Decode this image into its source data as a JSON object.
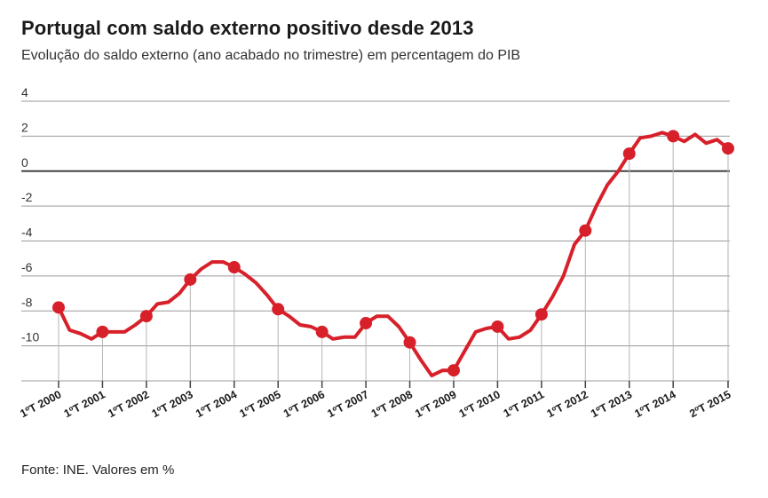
{
  "title": "Portugal com saldo externo positivo desde 2013",
  "subtitle": "Evolução do saldo externo (ano acabado no trimestre) em percentagem do PIB",
  "source": "Fonte: INE. Valores em %",
  "colors": {
    "line": "#d7202a",
    "grid": "#9a9a9a",
    "zero": "#444444",
    "vline": "#b5b5b5"
  },
  "chart_data": {
    "type": "line",
    "title": "Portugal com saldo externo positivo desde 2013",
    "subtitle": "Evolução do saldo externo (ano acabado no trimestre) em percentagem do PIB",
    "xlabel": "",
    "ylabel": "",
    "ylim": [
      -12,
      4
    ],
    "yticks": [
      4,
      2,
      0,
      -2,
      -4,
      -6,
      -8,
      -10
    ],
    "ytick_labels": [
      "4",
      "2",
      "0",
      "-2",
      "-4",
      "-6",
      "-8",
      "-10"
    ],
    "grid": true,
    "x_labels": [
      {
        "q": 0,
        "label": "1ºT 2000"
      },
      {
        "q": 4,
        "label": "1ºT 2001"
      },
      {
        "q": 8,
        "label": "1ºT 2002"
      },
      {
        "q": 12,
        "label": "1ºT 2003"
      },
      {
        "q": 16,
        "label": "1ºT 2004"
      },
      {
        "q": 20,
        "label": "1ºT 2005"
      },
      {
        "q": 24,
        "label": "1ºT 2006"
      },
      {
        "q": 28,
        "label": "1ºT 2007"
      },
      {
        "q": 32,
        "label": "1ºT 2008"
      },
      {
        "q": 36,
        "label": "1ºT 2009"
      },
      {
        "q": 40,
        "label": "1ºT 2010"
      },
      {
        "q": 44,
        "label": "1ºT 2011"
      },
      {
        "q": 48,
        "label": "1ºT 2012"
      },
      {
        "q": 52,
        "label": "1ºT 2013"
      },
      {
        "q": 56,
        "label": "1ºT 2014"
      },
      {
        "q": 61,
        "label": "2ºT 2015"
      }
    ],
    "series": [
      {
        "values": [
          -7.8,
          -9.1,
          -9.3,
          -9.6,
          -9.2,
          -9.2,
          -9.2,
          -8.8,
          -8.3,
          -7.6,
          -7.5,
          -7.0,
          -6.2,
          -5.6,
          -5.2,
          -5.2,
          -5.5,
          -5.9,
          -6.4,
          -7.1,
          -7.9,
          -8.3,
          -8.8,
          -8.9,
          -9.2,
          -9.6,
          -9.5,
          -9.5,
          -8.7,
          -8.3,
          -8.3,
          -8.9,
          -9.8,
          -10.8,
          -11.7,
          -11.4,
          -11.4,
          -10.3,
          -9.2,
          -9.0,
          -8.9,
          -9.6,
          -9.5,
          -9.1,
          -8.2,
          -7.2,
          -6.0,
          -4.2,
          -3.4,
          -2.0,
          -0.8,
          0.0,
          1.0,
          1.9,
          2.0,
          2.2,
          2.0,
          1.7,
          2.1,
          1.6,
          1.8,
          1.3
        ],
        "markers_at": [
          0,
          4,
          8,
          12,
          16,
          20,
          24,
          28,
          32,
          36,
          40,
          44,
          48,
          52,
          56,
          61
        ]
      }
    ]
  }
}
